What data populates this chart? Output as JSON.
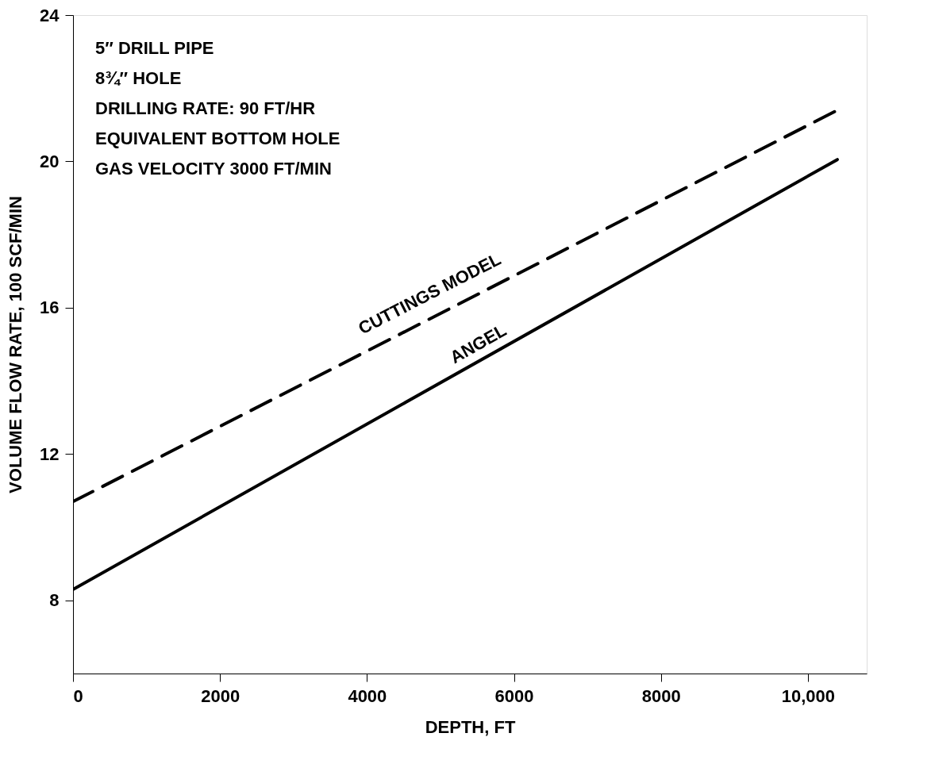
{
  "chart_data": {
    "type": "line",
    "xlabel": "DEPTH, FT",
    "ylabel": "VOLUME FLOW RATE, 100 SCF/MIN",
    "x": [
      0,
      10400
    ],
    "series": [
      {
        "name": "CUTTINGS MODEL",
        "color": "#000000",
        "line_style": "dashed",
        "values": [
          10.7,
          21.4
        ]
      },
      {
        "name": "ANGEL",
        "color": "#000000",
        "line_style": "solid",
        "values": [
          8.3,
          20.05
        ]
      }
    ],
    "xlim": [
      0,
      10800
    ],
    "xticks": [
      0,
      2000,
      4000,
      6000,
      8000,
      {
        "value": 10000,
        "label": "10,000"
      }
    ],
    "ylim": [
      6,
      24
    ],
    "yticks": [
      8,
      12,
      16,
      20,
      24
    ],
    "grid": false,
    "marker": "none",
    "annotations": [
      "5″ DRILL PIPE",
      "8¾″ HOLE",
      "DRILLING RATE: 90 FT/HR",
      "EQUIVALENT BOTTOM HOLE",
      "GAS VELOCITY 3000 FT/MIN"
    ]
  }
}
